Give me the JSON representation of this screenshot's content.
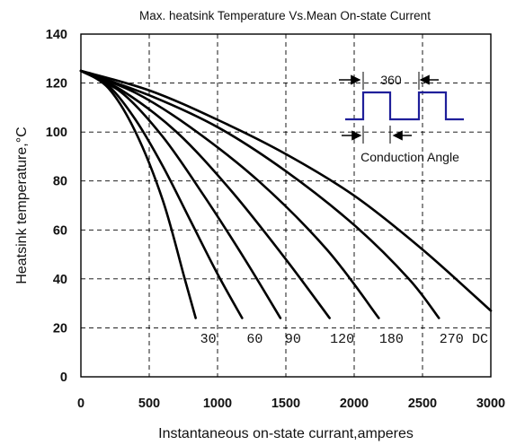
{
  "chart_data": {
    "type": "line",
    "title": "Max. heatsink Temperature Vs.Mean On-state Current",
    "xlabel": "Instantaneous on-state currant,amperes",
    "ylabel": "Heatsink temperature,°C",
    "xlim": [
      0,
      3000
    ],
    "ylim": [
      0,
      140
    ],
    "x_ticks": [
      "0",
      "500",
      "1000",
      "1500",
      "2000",
      "2500",
      "3000"
    ],
    "y_ticks": [
      "0",
      "20",
      "40",
      "60",
      "80",
      "100",
      "120",
      "140"
    ],
    "grid": true,
    "series": [
      {
        "name": "30",
        "points": [
          [
            0,
            125
          ],
          [
            200,
            118
          ],
          [
            400,
            100
          ],
          [
            600,
            72
          ],
          [
            760,
            40
          ],
          [
            840,
            24
          ]
        ]
      },
      {
        "name": "60",
        "points": [
          [
            0,
            125
          ],
          [
            200,
            119
          ],
          [
            400,
            105
          ],
          [
            600,
            86
          ],
          [
            800,
            64
          ],
          [
            1000,
            42
          ],
          [
            1180,
            24
          ]
        ]
      },
      {
        "name": "90",
        "points": [
          [
            0,
            125
          ],
          [
            300,
            116
          ],
          [
            600,
            98
          ],
          [
            900,
            74
          ],
          [
            1200,
            48
          ],
          [
            1460,
            24
          ]
        ]
      },
      {
        "name": "120",
        "points": [
          [
            0,
            125
          ],
          [
            300,
            117
          ],
          [
            700,
            100
          ],
          [
            1100,
            76
          ],
          [
            1500,
            48
          ],
          [
            1820,
            24
          ]
        ]
      },
      {
        "name": "180",
        "points": [
          [
            0,
            125
          ],
          [
            400,
            116
          ],
          [
            800,
            102
          ],
          [
            1300,
            80
          ],
          [
            1800,
            52
          ],
          [
            2180,
            24
          ]
        ]
      },
      {
        "name": "270",
        "points": [
          [
            0,
            125
          ],
          [
            500,
            115
          ],
          [
            1000,
            102
          ],
          [
            1500,
            84
          ],
          [
            2000,
            62
          ],
          [
            2400,
            40
          ],
          [
            2620,
            24
          ]
        ]
      },
      {
        "name": "DC",
        "points": [
          [
            0,
            125
          ],
          [
            500,
            117
          ],
          [
            1000,
            105
          ],
          [
            1500,
            91
          ],
          [
            2000,
            74
          ],
          [
            2500,
            52
          ],
          [
            3000,
            27
          ]
        ]
      }
    ],
    "annotations": {
      "period_label": "360",
      "conduction_label": "Conduction Angle"
    },
    "colors": {
      "curves": "#000000",
      "waveform": "#1f1f9a"
    }
  }
}
